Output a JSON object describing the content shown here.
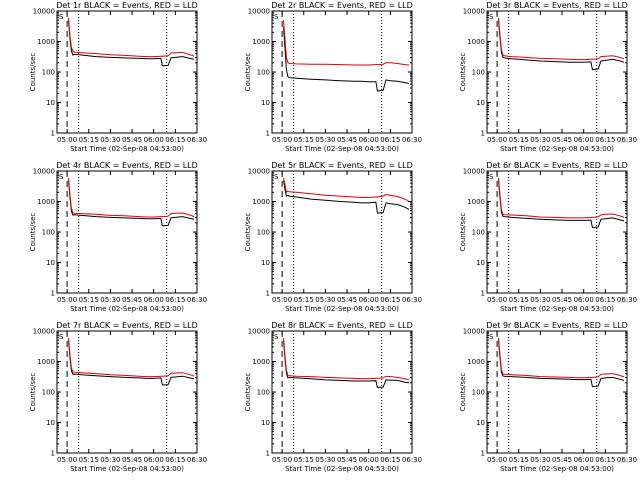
{
  "figure": {
    "xlabel": "Start Time (02-Sep-08 04:53:00)",
    "ylabel": "Counts/sec",
    "x_ticks": [
      "05:00",
      "05:15",
      "05:30",
      "05:45",
      "06:00",
      "06:15",
      "06:30"
    ],
    "y_ticks": [
      "1",
      "10",
      "100",
      "1000",
      "10000"
    ],
    "colors": {
      "events": "#000000",
      "lld": "#e00000",
      "frame": "#000000"
    },
    "marker": "S"
  },
  "chart_data": [
    {
      "type": "line",
      "title": "Det 1r BLACK = Events, RED = LLD",
      "xlabel": "Start Time (02-Sep-08 04:53:00)",
      "ylabel": "Counts/sec",
      "x": [
        "05:01",
        "05:02",
        "05:03",
        "05:04",
        "05:05",
        "05:10",
        "05:20",
        "05:30",
        "05:40",
        "05:50",
        "05:55",
        "06:00",
        "06:05",
        "06:06",
        "06:10",
        "06:12",
        "06:15",
        "06:20",
        "06:25",
        "06:28"
      ],
      "xlim": [
        "04:53",
        "06:30"
      ],
      "ylim": [
        1,
        10000
      ],
      "yscale": "log",
      "series": [
        {
          "name": "Events",
          "color": "#000000",
          "values": [
            5000,
            1200,
            500,
            360,
            380,
            360,
            320,
            300,
            290,
            280,
            270,
            270,
            280,
            160,
            165,
            290,
            300,
            320,
            280,
            260
          ]
        },
        {
          "name": "LLD",
          "color": "#e00000",
          "values": [
            6000,
            1500,
            650,
            480,
            450,
            430,
            400,
            370,
            350,
            330,
            320,
            320,
            330,
            330,
            340,
            420,
            430,
            440,
            370,
            330
          ]
        }
      ],
      "vlines": [
        {
          "x": "05:00",
          "style": "dashed"
        },
        {
          "x": "05:08",
          "style": "dotted"
        },
        {
          "x": "06:09",
          "style": "dotted"
        }
      ]
    },
    {
      "type": "line",
      "title": "Det 2r BLACK = Events, RED = LLD",
      "xlabel": "Start Time (02-Sep-08 04:53:00)",
      "ylabel": "Counts/sec",
      "x": [
        "05:01",
        "05:02",
        "05:03",
        "05:04",
        "05:05",
        "05:10",
        "05:20",
        "05:30",
        "05:40",
        "05:50",
        "05:55",
        "06:00",
        "06:05",
        "06:06",
        "06:10",
        "06:12",
        "06:15",
        "06:20",
        "06:25",
        "06:28"
      ],
      "xlim": [
        "04:53",
        "06:30"
      ],
      "ylim": [
        1,
        10000
      ],
      "yscale": "log",
      "series": [
        {
          "name": "Events",
          "color": "#000000",
          "values": [
            3000,
            600,
            120,
            70,
            65,
            62,
            58,
            55,
            52,
            50,
            50,
            48,
            48,
            24,
            25,
            55,
            52,
            50,
            45,
            42
          ]
        },
        {
          "name": "LLD",
          "color": "#e00000",
          "values": [
            5000,
            1200,
            300,
            200,
            190,
            185,
            180,
            180,
            175,
            170,
            170,
            170,
            175,
            175,
            180,
            200,
            200,
            190,
            175,
            170
          ]
        }
      ],
      "vlines": [
        {
          "x": "05:00",
          "style": "dashed"
        },
        {
          "x": "05:08",
          "style": "dotted"
        },
        {
          "x": "06:09",
          "style": "dotted"
        }
      ]
    },
    {
      "type": "line",
      "title": "Det 3r BLACK = Events, RED = LLD",
      "xlabel": "Start Time (02-Sep-08 04:53:00)",
      "ylabel": "Counts/sec",
      "x": [
        "05:01",
        "05:02",
        "05:03",
        "05:04",
        "05:05",
        "05:10",
        "05:20",
        "05:30",
        "05:40",
        "05:50",
        "05:55",
        "06:00",
        "06:05",
        "06:06",
        "06:10",
        "06:12",
        "06:15",
        "06:20",
        "06:25",
        "06:28"
      ],
      "xlim": [
        "04:53",
        "06:30"
      ],
      "ylim": [
        1,
        10000
      ],
      "yscale": "log",
      "series": [
        {
          "name": "Events",
          "color": "#000000",
          "values": [
            5000,
            1300,
            450,
            300,
            290,
            270,
            250,
            230,
            220,
            210,
            210,
            210,
            215,
            120,
            125,
            230,
            240,
            260,
            230,
            210
          ]
        },
        {
          "name": "LLD",
          "color": "#e00000",
          "values": [
            6000,
            1600,
            550,
            360,
            340,
            320,
            300,
            280,
            270,
            260,
            255,
            255,
            260,
            260,
            270,
            320,
            330,
            340,
            300,
            270
          ]
        }
      ],
      "vlines": [
        {
          "x": "05:00",
          "style": "dashed"
        },
        {
          "x": "05:08",
          "style": "dotted"
        },
        {
          "x": "06:09",
          "style": "dotted"
        }
      ]
    },
    {
      "type": "line",
      "title": "Det 4r BLACK = Events, RED = LLD",
      "xlabel": "Start Time (02-Sep-08 04:53:00)",
      "ylabel": "Counts/sec",
      "x": [
        "05:01",
        "05:02",
        "05:03",
        "05:04",
        "05:05",
        "05:10",
        "05:20",
        "05:30",
        "05:40",
        "05:50",
        "05:55",
        "06:00",
        "06:05",
        "06:06",
        "06:10",
        "06:12",
        "06:15",
        "06:20",
        "06:25",
        "06:28"
      ],
      "xlim": [
        "04:53",
        "06:30"
      ],
      "ylim": [
        1,
        10000
      ],
      "yscale": "log",
      "series": [
        {
          "name": "Events",
          "color": "#000000",
          "values": [
            5000,
            1300,
            480,
            360,
            370,
            350,
            320,
            300,
            290,
            280,
            270,
            270,
            280,
            160,
            165,
            290,
            300,
            320,
            280,
            260
          ]
        },
        {
          "name": "LLD",
          "color": "#e00000",
          "values": [
            6000,
            1600,
            600,
            420,
            410,
            400,
            380,
            350,
            340,
            320,
            310,
            310,
            320,
            320,
            330,
            400,
            410,
            420,
            360,
            320
          ]
        }
      ],
      "vlines": [
        {
          "x": "05:00",
          "style": "dashed"
        },
        {
          "x": "05:08",
          "style": "dotted"
        },
        {
          "x": "06:09",
          "style": "dotted"
        }
      ]
    },
    {
      "type": "line",
      "title": "Det 5r BLACK = Events, RED = LLD",
      "xlabel": "Start Time (02-Sep-08 04:53:00)",
      "ylabel": "Counts/sec",
      "x": [
        "05:01",
        "05:02",
        "05:03",
        "05:04",
        "05:05",
        "05:10",
        "05:20",
        "05:30",
        "05:40",
        "05:50",
        "05:55",
        "06:00",
        "06:05",
        "06:06",
        "06:10",
        "06:12",
        "06:15",
        "06:20",
        "06:25",
        "06:28"
      ],
      "xlim": [
        "04:53",
        "06:30"
      ],
      "ylim": [
        1,
        10000
      ],
      "yscale": "log",
      "series": [
        {
          "name": "Events",
          "color": "#000000",
          "values": [
            5000,
            2500,
            1500,
            1600,
            1500,
            1400,
            1200,
            1100,
            1000,
            950,
            900,
            900,
            950,
            420,
            430,
            900,
            850,
            800,
            650,
            550
          ]
        },
        {
          "name": "LLD",
          "color": "#e00000",
          "values": [
            6000,
            3500,
            2000,
            2200,
            2100,
            2000,
            1800,
            1600,
            1500,
            1400,
            1350,
            1350,
            1400,
            1400,
            1500,
            1700,
            1600,
            1450,
            1200,
            1000
          ]
        }
      ],
      "vlines": [
        {
          "x": "05:00",
          "style": "dashed"
        },
        {
          "x": "05:08",
          "style": "dotted"
        },
        {
          "x": "06:09",
          "style": "dotted"
        }
      ]
    },
    {
      "type": "line",
      "title": "Det 6r BLACK = Events, RED = LLD",
      "xlabel": "Start Time (02-Sep-08 04:53:00)",
      "ylabel": "Counts/sec",
      "x": [
        "05:01",
        "05:02",
        "05:03",
        "05:04",
        "05:05",
        "05:10",
        "05:20",
        "05:30",
        "05:40",
        "05:50",
        "05:55",
        "06:00",
        "06:05",
        "06:06",
        "06:10",
        "06:12",
        "06:15",
        "06:20",
        "06:25",
        "06:28"
      ],
      "xlim": [
        "04:53",
        "06:30"
      ],
      "ylim": [
        1,
        10000
      ],
      "yscale": "log",
      "series": [
        {
          "name": "Events",
          "color": "#000000",
          "values": [
            5000,
            1300,
            450,
            330,
            320,
            300,
            280,
            260,
            250,
            240,
            240,
            240,
            245,
            140,
            145,
            260,
            270,
            290,
            250,
            230
          ]
        },
        {
          "name": "LLD",
          "color": "#e00000",
          "values": [
            6000,
            1600,
            550,
            380,
            370,
            360,
            340,
            310,
            300,
            290,
            290,
            290,
            300,
            300,
            310,
            370,
            380,
            390,
            340,
            300
          ]
        }
      ],
      "vlines": [
        {
          "x": "05:00",
          "style": "dashed"
        },
        {
          "x": "05:08",
          "style": "dotted"
        },
        {
          "x": "06:09",
          "style": "dotted"
        }
      ]
    },
    {
      "type": "line",
      "title": "Det 7r BLACK = Events, RED = LLD",
      "xlabel": "Start Time (02-Sep-08 04:53:00)",
      "ylabel": "Counts/sec",
      "x": [
        "05:01",
        "05:02",
        "05:03",
        "05:04",
        "05:05",
        "05:10",
        "05:20",
        "05:30",
        "05:40",
        "05:50",
        "05:55",
        "06:00",
        "06:05",
        "06:06",
        "06:10",
        "06:12",
        "06:15",
        "06:20",
        "06:25",
        "06:28"
      ],
      "xlim": [
        "04:53",
        "06:30"
      ],
      "ylim": [
        1,
        10000
      ],
      "yscale": "log",
      "series": [
        {
          "name": "Events",
          "color": "#000000",
          "values": [
            5000,
            1300,
            500,
            380,
            390,
            370,
            340,
            320,
            300,
            290,
            280,
            280,
            290,
            170,
            175,
            300,
            310,
            330,
            290,
            270
          ]
        },
        {
          "name": "LLD",
          "color": "#e00000",
          "values": [
            6000,
            1600,
            620,
            460,
            450,
            430,
            400,
            370,
            350,
            330,
            320,
            320,
            330,
            330,
            340,
            410,
            420,
            430,
            370,
            330
          ]
        }
      ],
      "vlines": [
        {
          "x": "05:00",
          "style": "dashed"
        },
        {
          "x": "05:08",
          "style": "dotted"
        },
        {
          "x": "06:09",
          "style": "dotted"
        }
      ]
    },
    {
      "type": "line",
      "title": "Det 8r BLACK = Events, RED = LLD",
      "xlabel": "Start Time (02-Sep-08 04:53:00)",
      "ylabel": "Counts/sec",
      "x": [
        "05:01",
        "05:02",
        "05:03",
        "05:04",
        "05:05",
        "05:10",
        "05:20",
        "05:30",
        "05:40",
        "05:50",
        "05:55",
        "06:00",
        "06:05",
        "06:06",
        "06:10",
        "06:12",
        "06:15",
        "06:20",
        "06:25",
        "06:28"
      ],
      "xlim": [
        "04:53",
        "06:30"
      ],
      "ylim": [
        1,
        10000
      ],
      "yscale": "log",
      "series": [
        {
          "name": "Events",
          "color": "#000000",
          "values": [
            5000,
            1200,
            420,
            290,
            300,
            290,
            270,
            250,
            240,
            230,
            230,
            230,
            235,
            140,
            145,
            250,
            245,
            240,
            210,
            200
          ]
        },
        {
          "name": "LLD",
          "color": "#e00000",
          "values": [
            6000,
            1500,
            520,
            350,
            340,
            330,
            320,
            300,
            290,
            280,
            275,
            275,
            280,
            280,
            290,
            330,
            320,
            300,
            270,
            250
          ]
        }
      ],
      "vlines": [
        {
          "x": "05:00",
          "style": "dashed"
        },
        {
          "x": "05:08",
          "style": "dotted"
        },
        {
          "x": "06:09",
          "style": "dotted"
        }
      ]
    },
    {
      "type": "line",
      "title": "Det 9r BLACK = Events, RED = LLD",
      "xlabel": "Start Time (02-Sep-08 04:53:00)",
      "ylabel": "Counts/sec",
      "x": [
        "05:01",
        "05:02",
        "05:03",
        "05:04",
        "05:05",
        "05:10",
        "05:20",
        "05:30",
        "05:40",
        "05:50",
        "05:55",
        "06:00",
        "06:05",
        "06:06",
        "06:10",
        "06:12",
        "06:15",
        "06:20",
        "06:25",
        "06:28"
      ],
      "xlim": [
        "04:53",
        "06:30"
      ],
      "ylim": [
        1,
        10000
      ],
      "yscale": "log",
      "series": [
        {
          "name": "Events",
          "color": "#000000",
          "values": [
            5000,
            1300,
            450,
            340,
            330,
            320,
            300,
            280,
            270,
            260,
            255,
            255,
            260,
            150,
            155,
            280,
            290,
            300,
            260,
            240
          ]
        },
        {
          "name": "LLD",
          "color": "#e00000",
          "values": [
            6000,
            1600,
            550,
            390,
            380,
            370,
            350,
            320,
            310,
            300,
            295,
            295,
            300,
            300,
            310,
            380,
            390,
            400,
            350,
            310
          ]
        }
      ],
      "vlines": [
        {
          "x": "05:00",
          "style": "dashed"
        },
        {
          "x": "05:08",
          "style": "dotted"
        },
        {
          "x": "06:09",
          "style": "dotted"
        }
      ]
    }
  ]
}
